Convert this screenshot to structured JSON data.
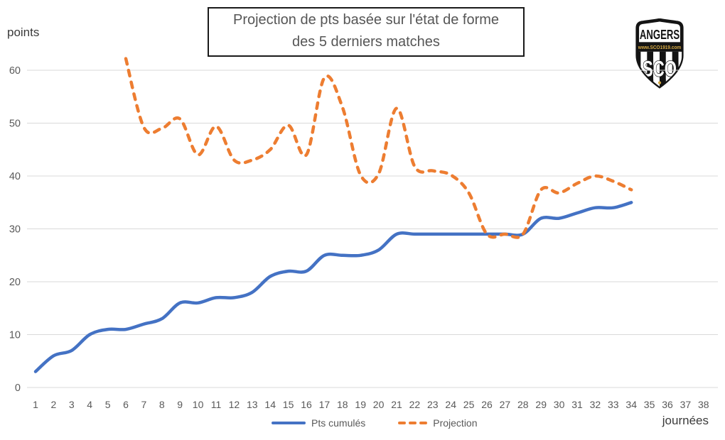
{
  "title": {
    "line1": "Projection de pts basée sur l'état de forme",
    "line2": "des 5 derniers matches"
  },
  "logo": {
    "club": "ANGERS",
    "banner": "www.SCO1919.com",
    "monogram": "SCO",
    "shield_color": "#141414",
    "accent_gold": "#D4A843"
  },
  "colors": {
    "cumulative_line": "#4472C4",
    "projection_line": "#ED7D31",
    "gridline": "#D9D9D9",
    "tick_text": "#595959",
    "axis_title_text": "#3a3a3a",
    "title_text": "#565656"
  },
  "chart_data": {
    "type": "line",
    "title": "Projection de pts basée sur l'état de forme des 5 derniers matches",
    "xlabel": "journées",
    "ylabel": "points",
    "xlim": [
      1,
      38
    ],
    "ylim": [
      0,
      60
    ],
    "grid": "horizontal",
    "legend_position": "bottom",
    "y_ticks": [
      0,
      10,
      20,
      30,
      40,
      50,
      60
    ],
    "x_ticks": [
      1,
      2,
      3,
      4,
      5,
      6,
      7,
      8,
      9,
      10,
      11,
      12,
      13,
      14,
      15,
      16,
      17,
      18,
      19,
      20,
      21,
      22,
      23,
      24,
      25,
      26,
      27,
      28,
      29,
      30,
      31,
      32,
      33,
      34,
      35,
      36,
      37,
      38
    ],
    "series": [
      {
        "name": "Pts cumulés",
        "color": "#4472C4",
        "style": "solid",
        "x": [
          1,
          2,
          3,
          4,
          5,
          6,
          7,
          8,
          9,
          10,
          11,
          12,
          13,
          14,
          15,
          16,
          17,
          18,
          19,
          20,
          21,
          22,
          23,
          24,
          25,
          26,
          27,
          28,
          29,
          30,
          31,
          32,
          33,
          34
        ],
        "values": [
          3,
          6,
          7,
          10,
          11,
          11,
          12,
          13,
          16,
          16,
          17,
          17,
          18,
          21,
          22,
          22,
          25,
          25,
          25,
          26,
          29,
          29,
          29,
          29,
          29,
          29,
          29,
          29,
          32,
          32,
          33,
          34,
          34,
          35
        ]
      },
      {
        "name": "Projection",
        "color": "#ED7D31",
        "style": "dashed",
        "x": [
          6,
          7,
          8,
          9,
          10,
          11,
          12,
          13,
          14,
          15,
          16,
          17,
          18,
          19,
          20,
          21,
          22,
          23,
          24,
          25,
          26,
          27,
          28,
          29,
          30,
          31,
          32,
          33,
          34
        ],
        "values": [
          62.2,
          49.2,
          49,
          50.8,
          44,
          49.4,
          43,
          43,
          45,
          49.6,
          44,
          58.6,
          53,
          40.2,
          40.4,
          52.8,
          41.8,
          41,
          40.2,
          36.8,
          29,
          29,
          29,
          37.4,
          36.8,
          38.6,
          40,
          39,
          37.4
        ]
      }
    ]
  }
}
